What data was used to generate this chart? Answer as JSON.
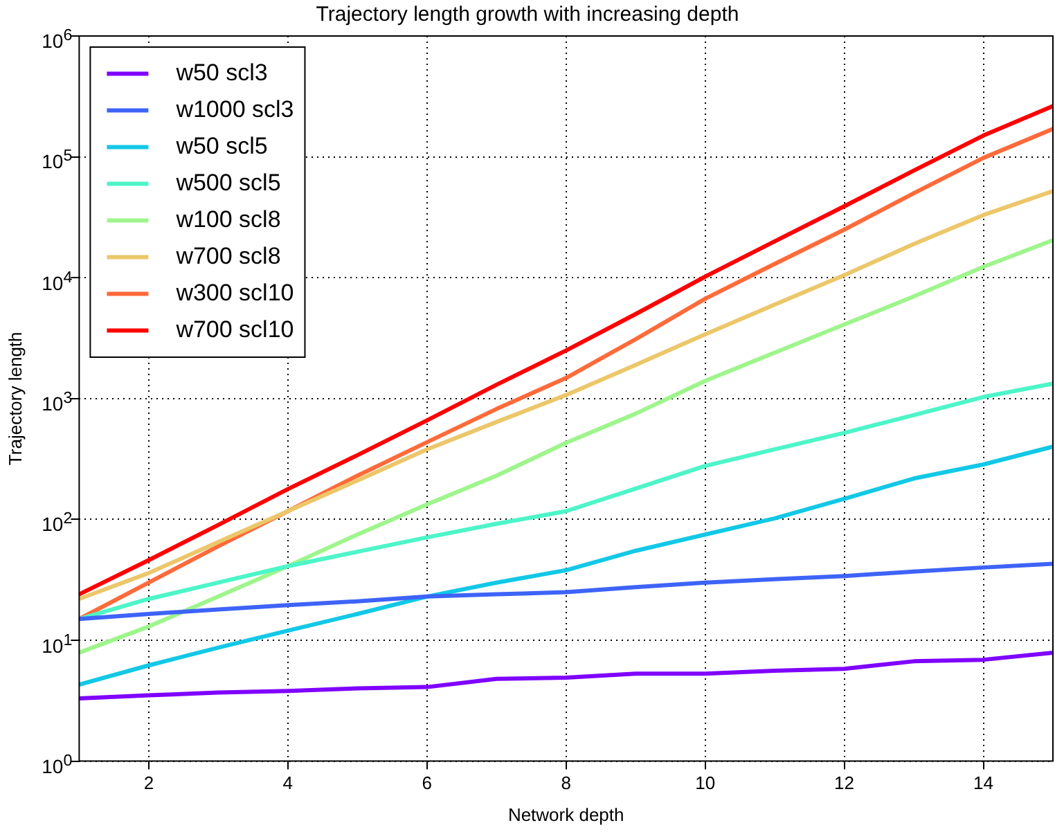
{
  "chart_data": {
    "type": "line",
    "title": "Trajectory length growth with increasing depth",
    "xlabel": "Network depth",
    "ylabel": "Trajectory length",
    "x": [
      1,
      2,
      3,
      4,
      5,
      6,
      7,
      8,
      9,
      10,
      11,
      12,
      13,
      14,
      15
    ],
    "series": [
      {
        "name": "w50 scl3",
        "color": "#7f00ff",
        "values": [
          3.3,
          3.5,
          3.7,
          3.8,
          4.0,
          4.1,
          4.8,
          4.9,
          5.3,
          5.3,
          5.6,
          5.8,
          6.7,
          6.9,
          7.9
        ]
      },
      {
        "name": "w1000 scl3",
        "color": "#3e63f8",
        "values": [
          15,
          16.5,
          18,
          19.5,
          21,
          23,
          24,
          25,
          27.5,
          30,
          32,
          34,
          37,
          40,
          43
        ]
      },
      {
        "name": "w50 scl5",
        "color": "#12c8e6",
        "values": [
          4.3,
          6.2,
          8.7,
          12,
          16.5,
          23,
          30,
          38,
          55,
          75,
          102,
          148,
          218,
          285,
          400
        ]
      },
      {
        "name": "w500 scl5",
        "color": "#4df5c8",
        "values": [
          15,
          22,
          30,
          41,
          54,
          71,
          92,
          117,
          180,
          277,
          380,
          520,
          730,
          1030,
          1330
        ]
      },
      {
        "name": "w100 scl8",
        "color": "#9ef58c",
        "values": [
          7.9,
          13,
          23,
          41,
          75,
          133,
          230,
          430,
          750,
          1400,
          2400,
          4100,
          7000,
          12300,
          20400
        ]
      },
      {
        "name": "w700 scl8",
        "color": "#ecc76a",
        "values": [
          22,
          36,
          65,
          117,
          210,
          380,
          640,
          1070,
          1900,
          3400,
          6000,
          10500,
          19000,
          33000,
          52000
        ]
      },
      {
        "name": "w300 scl10",
        "color": "#ff6a3a",
        "values": [
          15,
          30,
          60,
          117,
          230,
          435,
          820,
          1480,
          3100,
          6700,
          13000,
          25000,
          50000,
          98000,
          170000
        ]
      },
      {
        "name": "w700 scl10",
        "color": "#ff0000",
        "values": [
          24,
          46,
          90,
          178,
          340,
          660,
          1300,
          2500,
          5000,
          10200,
          20000,
          39000,
          77000,
          150000,
          263000
        ]
      }
    ],
    "xlim": [
      1,
      15
    ],
    "xticks": [
      2,
      4,
      6,
      8,
      10,
      12,
      14
    ],
    "ylim": [
      1,
      1000000
    ],
    "yticks": [
      {
        "value": 1,
        "label": "10$^{0}$"
      },
      {
        "value": 10,
        "label": "10$^{1}$"
      },
      {
        "value": 100,
        "label": "10$^{2}$"
      },
      {
        "value": 1000,
        "label": "10$^{3}$"
      },
      {
        "value": 10000,
        "label": "10$^{4}$"
      },
      {
        "value": 100000,
        "label": "10$^{5}$"
      },
      {
        "value": 1000000,
        "label": "10$^{6}$"
      }
    ],
    "log": "y",
    "grid": true,
    "legend": "top left",
    "marker": "none",
    "line_style": "solid"
  }
}
